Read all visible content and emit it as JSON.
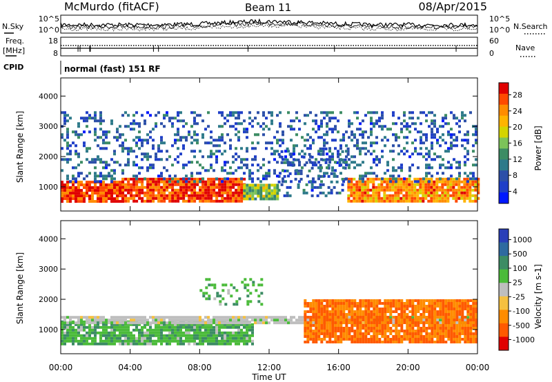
{
  "header": {
    "station": "McMurdo (fitACF)",
    "beam": "Beam 11",
    "date": "08/Apr/2015"
  },
  "strips": {
    "noise": {
      "left_label": "N.Sky",
      "right_label": "N.Search",
      "left_ticks": [
        "10^5",
        "10^0"
      ],
      "right_ticks": [
        "10^5",
        "10^0"
      ]
    },
    "freq": {
      "left_label_1": "Freq.",
      "left_label_2": "[MHz]",
      "right_label": "Nave",
      "left_ticks": [
        "18",
        "8"
      ],
      "right_ticks": [
        "60",
        "0"
      ]
    },
    "cpid": {
      "label": "CPID",
      "text": "normal (fast) 151 RF"
    }
  },
  "colorbars": {
    "power": {
      "label": "Power [dB]",
      "ticks": [
        "28",
        "24",
        "20",
        "16",
        "12",
        "8",
        "4"
      ],
      "colors": [
        "#e00000",
        "#ff4a00",
        "#ff8c00",
        "#ffb400",
        "#d4d400",
        "#7cc35a",
        "#3c8c64",
        "#2e7a8a",
        "#2c4fa8",
        "#1f3fc8",
        "#0018ff"
      ]
    },
    "velocity": {
      "label": "Velocity [m s-1]",
      "ticks": [
        "1000",
        "500",
        "100",
        "25",
        "-25",
        "-100",
        "-500",
        "-1000"
      ],
      "colors": [
        "#2a3fb8",
        "#2e6aa0",
        "#3c8c64",
        "#4bbb3a",
        "#bebebe",
        "#f5c040",
        "#ff8c00",
        "#ff5a00",
        "#e00000"
      ]
    }
  },
  "chart_data": [
    {
      "type": "heatmap",
      "title": "",
      "quantity": "Power",
      "ylabel": "Slant Range [km]",
      "xlabel": "",
      "ylim": [
        200,
        4600
      ],
      "yticks": [
        1000,
        2000,
        3000,
        4000
      ],
      "xlim": [
        0,
        24
      ],
      "units": "dB",
      "bands": [
        {
          "x": [
            0,
            3.5
          ],
          "y": [
            500,
            1200
          ],
          "value": 28
        },
        {
          "x": [
            3.5,
            10.5
          ],
          "y": [
            500,
            1300
          ],
          "value": 28
        },
        {
          "x": [
            10.5,
            12.5
          ],
          "y": [
            600,
            1100
          ],
          "value": 16
        },
        {
          "x": [
            12.5,
            16.5
          ],
          "y": [
            700,
            2300
          ],
          "value": 8
        },
        {
          "x": [
            16.5,
            24
          ],
          "y": [
            500,
            1300
          ],
          "value": 24
        },
        {
          "x": [
            0,
            24
          ],
          "y": [
            1200,
            3500
          ],
          "value": 8
        }
      ]
    },
    {
      "type": "heatmap",
      "title": "",
      "quantity": "Velocity",
      "ylabel": "Slant Range [km]",
      "xlabel": "Time UT",
      "ylim": [
        200,
        4600
      ],
      "yticks": [
        1000,
        2000,
        3000,
        4000
      ],
      "xlim": [
        0,
        24
      ],
      "xticks": [
        "00:00",
        "04:00",
        "08:00",
        "12:00",
        "16:00",
        "20:00",
        "00:00"
      ],
      "units": "m s-1",
      "bands": [
        {
          "x": [
            0,
            11
          ],
          "y": [
            500,
            1300
          ],
          "value": 50
        },
        {
          "x": [
            0,
            24
          ],
          "y": [
            1200,
            1450
          ],
          "value": 0
        },
        {
          "x": [
            14,
            24
          ],
          "y": [
            600,
            2000
          ],
          "value": -300
        },
        {
          "x": [
            8,
            11.5
          ],
          "y": [
            1800,
            2700
          ],
          "value": 50
        }
      ]
    }
  ]
}
